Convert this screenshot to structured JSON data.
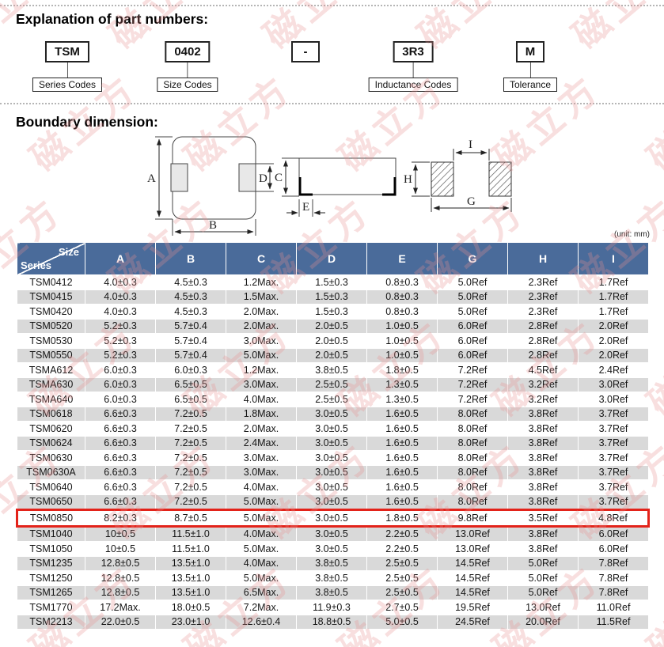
{
  "sections": {
    "part_numbers_title": "Explanation of part numbers:",
    "boundary_title": "Boundary dimension:"
  },
  "part_number": {
    "segments": [
      {
        "code": "TSM",
        "label": "Series Codes"
      },
      {
        "code": "0402",
        "label": "Size Codes"
      },
      {
        "code": "-",
        "label": ""
      },
      {
        "code": "3R3",
        "label": "Inductance Codes"
      },
      {
        "code": "M",
        "label": "Tolerance"
      }
    ]
  },
  "diagram": {
    "labels": {
      "A": "A",
      "B": "B",
      "C": "C",
      "D": "D",
      "E": "E",
      "G": "G",
      "H": "H",
      "I": "I"
    }
  },
  "table": {
    "unit_note": "(unit: mm)",
    "corner_top": "Size",
    "corner_bottom": "Series",
    "columns": [
      "A",
      "B",
      "C",
      "D",
      "E",
      "G",
      "H",
      "I"
    ],
    "rows": [
      {
        "series": "TSM0412",
        "values": [
          "4.0±0.3",
          "4.5±0.3",
          "1.2Max.",
          "1.5±0.3",
          "0.8±0.3",
          "5.0Ref",
          "2.3Ref",
          "1.7Ref"
        ],
        "highlight": false
      },
      {
        "series": "TSM0415",
        "values": [
          "4.0±0.3",
          "4.5±0.3",
          "1.5Max.",
          "1.5±0.3",
          "0.8±0.3",
          "5.0Ref",
          "2.3Ref",
          "1.7Ref"
        ],
        "highlight": false
      },
      {
        "series": "TSM0420",
        "values": [
          "4.0±0.3",
          "4.5±0.3",
          "2.0Max.",
          "1.5±0.3",
          "0.8±0.3",
          "5.0Ref",
          "2.3Ref",
          "1.7Ref"
        ],
        "highlight": false
      },
      {
        "series": "TSM0520",
        "values": [
          "5.2±0.3",
          "5.7±0.4",
          "2.0Max.",
          "2.0±0.5",
          "1.0±0.5",
          "6.0Ref",
          "2.8Ref",
          "2.0Ref"
        ],
        "highlight": false
      },
      {
        "series": "TSM0530",
        "values": [
          "5.2±0.3",
          "5.7±0.4",
          "3.0Max.",
          "2.0±0.5",
          "1.0±0.5",
          "6.0Ref",
          "2.8Ref",
          "2.0Ref"
        ],
        "highlight": false
      },
      {
        "series": "TSM0550",
        "values": [
          "5.2±0.3",
          "5.7±0.4",
          "5.0Max.",
          "2.0±0.5",
          "1.0±0.5",
          "6.0Ref",
          "2.8Ref",
          "2.0Ref"
        ],
        "highlight": false
      },
      {
        "series": "TSMA612",
        "values": [
          "6.0±0.3",
          "6.0±0.3",
          "1.2Max.",
          "3.8±0.5",
          "1.8±0.5",
          "7.2Ref",
          "4.5Ref",
          "2.4Ref"
        ],
        "highlight": false
      },
      {
        "series": "TSMA630",
        "values": [
          "6.0±0.3",
          "6.5±0.5",
          "3.0Max.",
          "2.5±0.5",
          "1.3±0.5",
          "7.2Ref",
          "3.2Ref",
          "3.0Ref"
        ],
        "highlight": false
      },
      {
        "series": "TSMA640",
        "values": [
          "6.0±0.3",
          "6.5±0.5",
          "4.0Max.",
          "2.5±0.5",
          "1.3±0.5",
          "7.2Ref",
          "3.2Ref",
          "3.0Ref"
        ],
        "highlight": false
      },
      {
        "series": "TSM0618",
        "values": [
          "6.6±0.3",
          "7.2±0.5",
          "1.8Max.",
          "3.0±0.5",
          "1.6±0.5",
          "8.0Ref",
          "3.8Ref",
          "3.7Ref"
        ],
        "highlight": false
      },
      {
        "series": "TSM0620",
        "values": [
          "6.6±0.3",
          "7.2±0.5",
          "2.0Max.",
          "3.0±0.5",
          "1.6±0.5",
          "8.0Ref",
          "3.8Ref",
          "3.7Ref"
        ],
        "highlight": false
      },
      {
        "series": "TSM0624",
        "values": [
          "6.6±0.3",
          "7.2±0.5",
          "2.4Max.",
          "3.0±0.5",
          "1.6±0.5",
          "8.0Ref",
          "3.8Ref",
          "3.7Ref"
        ],
        "highlight": false
      },
      {
        "series": "TSM0630",
        "values": [
          "6.6±0.3",
          "7.2±0.5",
          "3.0Max.",
          "3.0±0.5",
          "1.6±0.5",
          "8.0Ref",
          "3.8Ref",
          "3.7Ref"
        ],
        "highlight": false
      },
      {
        "series": "TSM0630A",
        "values": [
          "6.6±0.3",
          "7.2±0.5",
          "3.0Max.",
          "3.0±0.5",
          "1.6±0.5",
          "8.0Ref",
          "3.8Ref",
          "3.7Ref"
        ],
        "highlight": false
      },
      {
        "series": "TSM0640",
        "values": [
          "6.6±0.3",
          "7.2±0.5",
          "4.0Max.",
          "3.0±0.5",
          "1.6±0.5",
          "8.0Ref",
          "3.8Ref",
          "3.7Ref"
        ],
        "highlight": false
      },
      {
        "series": "TSM0650",
        "values": [
          "6.6±0.3",
          "7.2±0.5",
          "5.0Max.",
          "3.0±0.5",
          "1.6±0.5",
          "8.0Ref",
          "3.8Ref",
          "3.7Ref"
        ],
        "highlight": false
      },
      {
        "series": "TSM0850",
        "values": [
          "8.2±0.3",
          "8.7±0.5",
          "5.0Max.",
          "3.0±0.5",
          "1.8±0.5",
          "9.8Ref",
          "3.5Ref",
          "4.8Ref"
        ],
        "highlight": true
      },
      {
        "series": "TSM1040",
        "values": [
          "10±0.5",
          "11.5±1.0",
          "4.0Max.",
          "3.0±0.5",
          "2.2±0.5",
          "13.0Ref",
          "3.8Ref",
          "6.0Ref"
        ],
        "highlight": false
      },
      {
        "series": "TSM1050",
        "values": [
          "10±0.5",
          "11.5±1.0",
          "5.0Max.",
          "3.0±0.5",
          "2.2±0.5",
          "13.0Ref",
          "3.8Ref",
          "6.0Ref"
        ],
        "highlight": false
      },
      {
        "series": "TSM1235",
        "values": [
          "12.8±0.5",
          "13.5±1.0",
          "4.0Max.",
          "3.8±0.5",
          "2.5±0.5",
          "14.5Ref",
          "5.0Ref",
          "7.8Ref"
        ],
        "highlight": false
      },
      {
        "series": "TSM1250",
        "values": [
          "12.8±0.5",
          "13.5±1.0",
          "5.0Max.",
          "3.8±0.5",
          "2.5±0.5",
          "14.5Ref",
          "5.0Ref",
          "7.8Ref"
        ],
        "highlight": false
      },
      {
        "series": "TSM1265",
        "values": [
          "12.8±0.5",
          "13.5±1.0",
          "6.5Max.",
          "3.8±0.5",
          "2.5±0.5",
          "14.5Ref",
          "5.0Ref",
          "7.8Ref"
        ],
        "highlight": false
      },
      {
        "series": "TSM1770",
        "values": [
          "17.2Max.",
          "18.0±0.5",
          "7.2Max.",
          "11.9±0.3",
          "2.7±0.5",
          "19.5Ref",
          "13.0Ref",
          "11.0Ref"
        ],
        "highlight": false
      },
      {
        "series": "TSM2213",
        "values": [
          "22.0±0.5",
          "23.0±1.0",
          "12.6±0.4",
          "18.8±0.5",
          "5.0±0.5",
          "24.5Ref",
          "20.0Ref",
          "11.5Ref"
        ],
        "highlight": false
      }
    ]
  },
  "watermark": {
    "text": "磁立方",
    "color": "#e89090"
  },
  "colors": {
    "header_bg": "#4a6b9a",
    "row_alt_bg": "#d9d9d9",
    "highlight_border": "#e3231a"
  }
}
